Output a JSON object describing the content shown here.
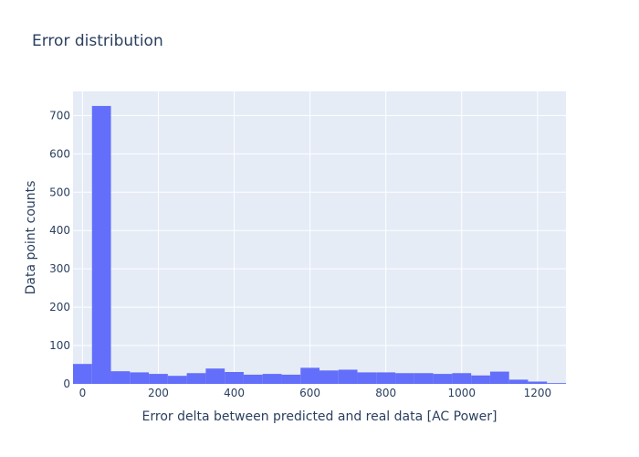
{
  "chart_data": {
    "type": "bar",
    "subtype": "histogram",
    "title": "Error distribution",
    "xlabel": "Error delta between predicted and real data [AC Power]",
    "ylabel": "Data point counts",
    "xlim": [
      -25,
      1275
    ],
    "ylim": [
      0,
      763
    ],
    "x_ticks": [
      0,
      200,
      400,
      600,
      800,
      1000,
      1200
    ],
    "y_ticks": [
      0,
      100,
      200,
      300,
      400,
      500,
      600,
      700
    ],
    "bin_width": 50,
    "bin_starts": [
      -25,
      25,
      75,
      125,
      175,
      225,
      275,
      325,
      375,
      425,
      475,
      525,
      575,
      625,
      675,
      725,
      775,
      825,
      875,
      925,
      975,
      1025,
      1075,
      1125,
      1175,
      1225
    ],
    "values": [
      52,
      725,
      33,
      30,
      26,
      21,
      28,
      40,
      31,
      24,
      26,
      24,
      42,
      35,
      37,
      30,
      30,
      28,
      28,
      26,
      28,
      22,
      32,
      11,
      6,
      2
    ],
    "bar_color": "#636efa",
    "plot_bg": "#e5ecf6",
    "grid": true,
    "legend": "none"
  }
}
